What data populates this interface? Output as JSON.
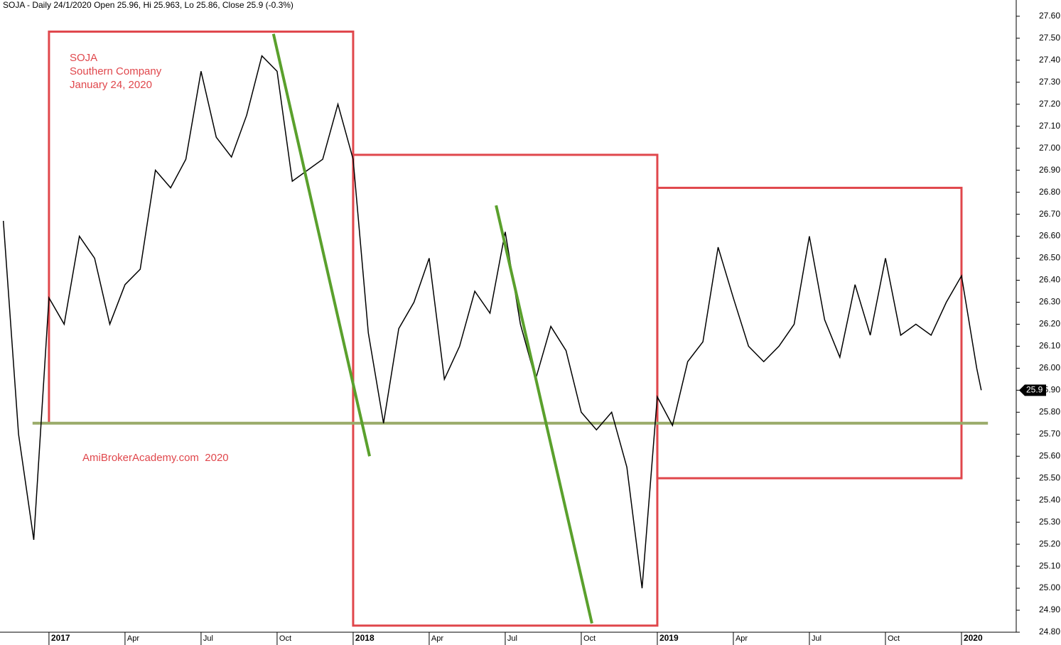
{
  "chart_data": {
    "type": "line",
    "title": "SOJA - Daily 24/1/2020 Open 25.96, Hi 25.963, Lo 25.86, Close 25.9 (-0.3%)",
    "xlim": [
      2016.839,
      2020.18
    ],
    "ylim": [
      24.8,
      27.648
    ],
    "xticks": [
      2017,
      {
        "value": 2017.25,
        "label": "Apr"
      },
      {
        "value": 2017.5,
        "label": "Jul"
      },
      {
        "value": 2017.75,
        "label": "Oct"
      },
      2018,
      {
        "value": 2018.25,
        "label": "Apr"
      },
      {
        "value": 2018.5,
        "label": "Jul"
      },
      {
        "value": 2018.75,
        "label": "Oct"
      },
      2019,
      {
        "value": 2019.25,
        "label": "Apr"
      },
      {
        "value": 2019.5,
        "label": "Jul"
      },
      {
        "value": 2019.75,
        "label": "Oct"
      },
      2020
    ],
    "yticks": [
      {
        "value": 24.8,
        "label": "24.80"
      },
      {
        "value": 24.9,
        "label": "24.90"
      },
      {
        "value": 25.0,
        "label": "25.00"
      },
      {
        "value": 25.1,
        "label": "25.10"
      },
      {
        "value": 25.2,
        "label": "25.20"
      },
      {
        "value": 25.3,
        "label": "25.30"
      },
      {
        "value": 25.4,
        "label": "25.40"
      },
      {
        "value": 25.5,
        "label": "25.50"
      },
      {
        "value": 25.6,
        "label": "25.60"
      },
      {
        "value": 25.7,
        "label": "25.70"
      },
      {
        "value": 25.8,
        "label": "25.80"
      },
      {
        "value": 25.9,
        "label": "25.90"
      },
      {
        "value": 26.0,
        "label": "26.00"
      },
      {
        "value": 26.1,
        "label": "26.10"
      },
      {
        "value": 26.2,
        "label": "26.20"
      },
      {
        "value": 26.3,
        "label": "26.30"
      },
      {
        "value": 26.4,
        "label": "26.40"
      },
      {
        "value": 26.5,
        "label": "26.50"
      },
      {
        "value": 26.6,
        "label": "26.60"
      },
      {
        "value": 26.7,
        "label": "26.70"
      },
      {
        "value": 26.8,
        "label": "26.80"
      },
      {
        "value": 26.9,
        "label": "26.90"
      },
      {
        "value": 27.0,
        "label": "27.00"
      },
      {
        "value": 27.1,
        "label": "27.10"
      },
      {
        "value": 27.2,
        "label": "27.20"
      },
      {
        "value": 27.3,
        "label": "27.30"
      },
      {
        "value": 27.4,
        "label": "27.40"
      },
      {
        "value": 27.5,
        "label": "27.50"
      },
      {
        "value": 27.6,
        "label": "27.60"
      }
    ],
    "series": [
      {
        "color": "#000000",
        "x": [
          2016.85,
          2016.9,
          2016.95,
          2017.0,
          2017.05,
          2017.1,
          2017.15,
          2017.2,
          2017.25,
          2017.3,
          2017.35,
          2017.4,
          2017.45,
          2017.5,
          2017.55,
          2017.6,
          2017.65,
          2017.7,
          2017.75,
          2017.8,
          2017.85,
          2017.9,
          2017.95,
          2018.0,
          2018.05,
          2018.1,
          2018.15,
          2018.2,
          2018.25,
          2018.3,
          2018.35,
          2018.4,
          2018.45,
          2018.5,
          2018.55,
          2018.6,
          2018.65,
          2018.7,
          2018.75,
          2018.8,
          2018.85,
          2018.9,
          2018.95,
          2019.0,
          2019.05,
          2019.1,
          2019.15,
          2019.2,
          2019.25,
          2019.3,
          2019.35,
          2019.4,
          2019.45,
          2019.5,
          2019.55,
          2019.6,
          2019.65,
          2019.7,
          2019.75,
          2019.8,
          2019.85,
          2019.9,
          2019.95,
          2020.0,
          2020.05,
          2020.065
        ],
        "values": [
          26.67,
          25.7,
          25.22,
          26.32,
          26.2,
          26.6,
          26.5,
          26.2,
          26.38,
          26.45,
          26.9,
          26.82,
          26.95,
          27.35,
          27.05,
          26.96,
          27.15,
          27.42,
          27.35,
          26.85,
          26.9,
          26.95,
          27.2,
          26.95,
          26.16,
          25.75,
          26.18,
          26.3,
          26.5,
          25.95,
          26.1,
          26.35,
          26.25,
          26.62,
          26.2,
          25.95,
          26.19,
          26.08,
          25.8,
          25.72,
          25.8,
          25.55,
          25.0,
          25.87,
          25.74,
          26.03,
          26.12,
          26.55,
          26.32,
          26.1,
          26.03,
          26.1,
          26.2,
          26.6,
          26.22,
          26.05,
          26.38,
          26.15,
          26.5,
          26.15,
          26.2,
          26.15,
          26.3,
          26.42,
          26.0,
          25.9
        ]
      }
    ],
    "last_close": 25.9,
    "boxes": [
      {
        "x": [
          2017.0,
          2018.0
        ],
        "y": [
          25.75,
          27.53
        ],
        "color": "#e0474c"
      },
      {
        "x": [
          2018.0,
          2019.0
        ],
        "y": [
          24.83,
          26.97
        ],
        "color": "#e0474c"
      },
      {
        "x": [
          2019.0,
          2020.0
        ],
        "y": [
          25.5,
          26.82
        ],
        "color": "#e0474c"
      }
    ],
    "trendlines": [
      {
        "x": [
          2017.738,
          2018.054
        ],
        "y": [
          27.52,
          25.6
        ],
        "color": "#5aa02c"
      },
      {
        "x": [
          2018.47,
          2018.785
        ],
        "y": [
          26.74,
          24.84
        ],
        "color": "#5aa02c"
      }
    ],
    "support": {
      "x": [
        2016.946,
        2020.087
      ],
      "y": 25.75,
      "color": "#9aab6a"
    },
    "annotations": [
      "SOJA",
      "Southern Company",
      "January 24, 2020",
      "AmiBrokerAcademy.com  2020"
    ]
  }
}
